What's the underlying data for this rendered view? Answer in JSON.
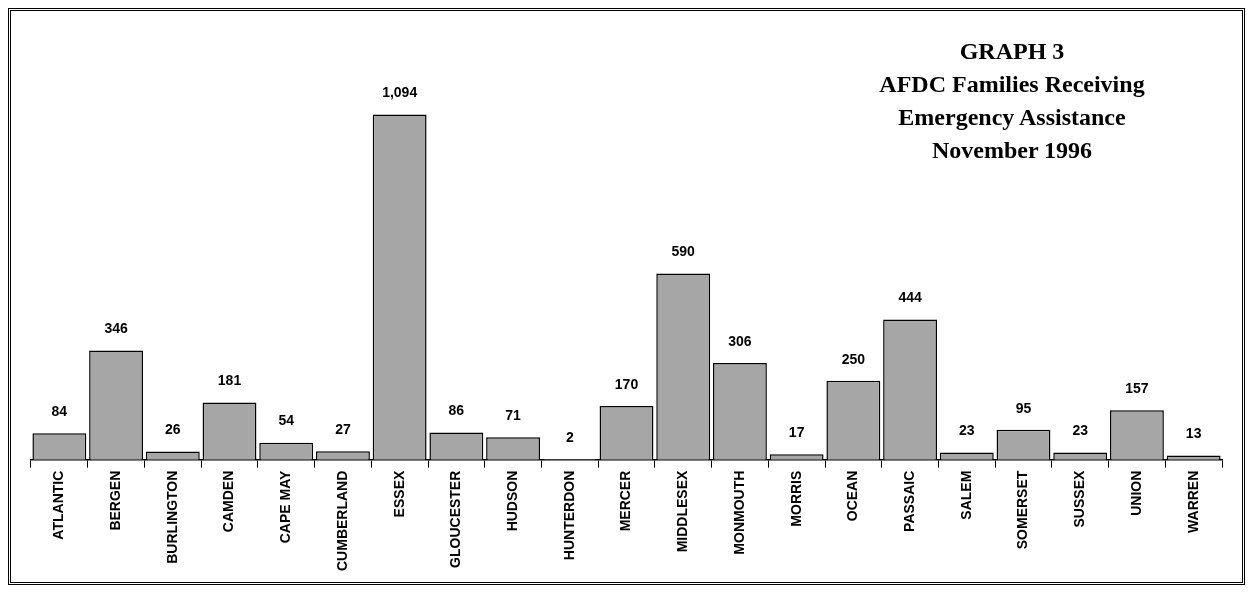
{
  "chart_data": {
    "type": "bar",
    "title": "GRAPH 3",
    "subtitle": "AFDC Families Receiving\nEmergency Assistance\nNovember 1996",
    "categories": [
      "ATLANTIC",
      "BERGEN",
      "BURLINGTON",
      "CAMDEN",
      "CAPE MAY",
      "CUMBERLAND",
      "ESSEX",
      "GLOUCESTER",
      "HUDSON",
      "HUNTERDON",
      "MERCER",
      "MIDDLESEX",
      "MONMOUTH",
      "MORRIS",
      "OCEAN",
      "PASSAIC",
      "SALEM",
      "SOMERSET",
      "SUSSEX",
      "UNION",
      "WARREN"
    ],
    "values": [
      84,
      346,
      26,
      181,
      54,
      27,
      1094,
      86,
      71,
      2,
      170,
      590,
      306,
      17,
      250,
      444,
      23,
      95,
      23,
      157,
      13
    ],
    "value_labels": [
      "84",
      "346",
      "26",
      "181",
      "54",
      "27",
      "1,094",
      "86",
      "71",
      "2",
      "170",
      "590",
      "306",
      "17",
      "250",
      "444",
      "23",
      "95",
      "23",
      "157",
      "13"
    ],
    "color": "#a6a6a6",
    "legend": false,
    "tick_labels": "x"
  }
}
